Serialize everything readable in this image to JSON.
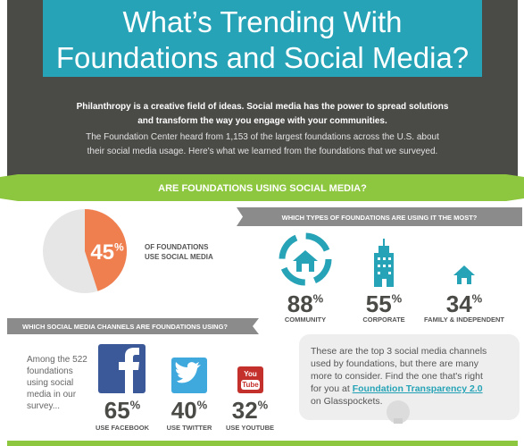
{
  "header": {
    "title_lines": [
      "What’s Trending With",
      "Foundations and Social Media?"
    ],
    "intro_bold": [
      "Philanthropy is a creative field of ideas. Social media has the power to spread solutions",
      "and transform the way you engage with your communities."
    ],
    "intro": [
      "The Foundation Center heard from 1,153 of the largest foundations across the U.S. about",
      "their social media usage. Here's what we learned from the foundations that we surveyed."
    ]
  },
  "section_title": "ARE FOUNDATIONS USING SOCIAL MEDIA?",
  "overall": {
    "value": 45,
    "unit": "%",
    "label_lines": [
      "OF FOUNDATIONS",
      "USE SOCIAL MEDIA"
    ]
  },
  "types": {
    "title": "WHICH TYPES OF FOUNDATIONS ARE USING IT THE MOST?",
    "items": [
      {
        "value": 88,
        "unit": "%",
        "label": "COMMUNITY"
      },
      {
        "value": 55,
        "unit": "%",
        "label": "CORPORATE"
      },
      {
        "value": 34,
        "unit": "%",
        "label": "FAMILY & INDEPENDENT"
      }
    ]
  },
  "channels": {
    "title": "WHICH SOCIAL MEDIA CHANNELS ARE FOUNDATIONS USING?",
    "intro_lines": [
      "Among the 522",
      "foundations",
      "using social",
      "media in our",
      "survey..."
    ],
    "youtube_logo": [
      "You",
      "Tube"
    ],
    "items": [
      {
        "value": 65,
        "unit": "%",
        "label": "USE FACEBOOK"
      },
      {
        "value": 40,
        "unit": "%",
        "label": "USE TWITTER"
      },
      {
        "value": 32,
        "unit": "%",
        "label": "USE YOUTUBE"
      }
    ]
  },
  "callout": {
    "lines": [
      "These are the top 3 social media channels",
      "used by foundations, but there are many",
      "more to consider. Find the one that's right"
    ],
    "line4_prefix": "for you at ",
    "link": "Foundation Transparency 2.0",
    "last_line": "on Glasspockets."
  }
}
